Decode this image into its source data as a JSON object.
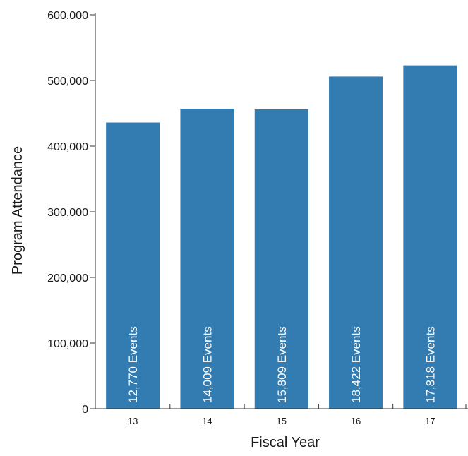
{
  "chart_data": {
    "type": "bar",
    "title": "",
    "xlabel": "Fiscal Year",
    "ylabel": "Program Attendance",
    "categories": [
      "13",
      "14",
      "15",
      "16",
      "17"
    ],
    "values": [
      436000,
      457000,
      456000,
      506000,
      523000
    ],
    "bar_labels": [
      "12,770 Events",
      "14,009 Events",
      "15,809 Events",
      "18,422 Events",
      "17,818 Events"
    ],
    "ylim": [
      0,
      600000
    ],
    "yticks": [
      0,
      100000,
      200000,
      300000,
      400000,
      500000,
      600000
    ],
    "ytick_labels": [
      "0",
      "100,000",
      "200,000",
      "300,000",
      "400,000",
      "500,000",
      "600,000"
    ],
    "grid": false,
    "legend": "none",
    "bar_color": "#337cb1",
    "axis_color": "#333333"
  }
}
